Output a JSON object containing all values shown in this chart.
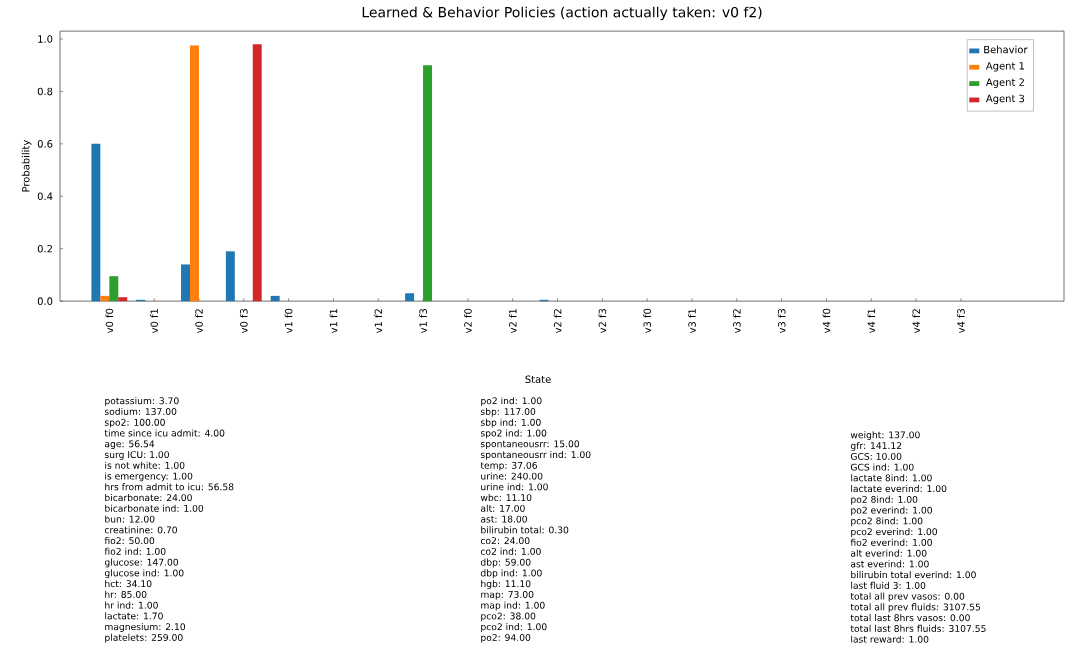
{
  "chart_data": {
    "type": "bar",
    "title": "Learned & Behavior Policies (action actually taken: v0 f2)",
    "ylabel": "Probability",
    "categories": [
      "v0 f0",
      "v0 f1",
      "v0 f2",
      "v0 f3",
      "v1 f0",
      "v1 f1",
      "v1 f2",
      "v1 f3",
      "v2 f0",
      "v2 f1",
      "v2 f2",
      "v2 f3",
      "v3 f0",
      "v3 f1",
      "v3 f2",
      "v3 f3",
      "v4 f0",
      "v4 f1",
      "v4 f2",
      "v4 f3"
    ],
    "series": [
      {
        "name": "Behavior",
        "color": "#1f77b4",
        "values": [
          0.6,
          0.005,
          0.14,
          0.19,
          0.02,
          0,
          0,
          0.03,
          0,
          0,
          0.005,
          0,
          0,
          0,
          0,
          0,
          0,
          0,
          0,
          0
        ]
      },
      {
        "name": "Agent 1",
        "color": "#ff7f0e",
        "values": [
          0.02,
          0,
          0.975,
          0,
          0,
          0,
          0,
          0,
          0,
          0,
          0,
          0,
          0,
          0,
          0,
          0,
          0,
          0,
          0,
          0
        ]
      },
      {
        "name": "Agent 2",
        "color": "#2ca02c",
        "values": [
          0.095,
          0,
          0,
          0,
          0,
          0,
          0,
          0.9,
          0,
          0,
          0,
          0,
          0,
          0,
          0,
          0,
          0,
          0,
          0,
          0
        ]
      },
      {
        "name": "Agent 3",
        "color": "#d62728",
        "values": [
          0.015,
          0,
          0,
          0.98,
          0,
          0,
          0,
          0,
          0,
          0,
          0,
          0,
          0,
          0,
          0,
          0,
          0,
          0,
          0,
          0
        ]
      }
    ],
    "ylim": [
      0,
      1.03
    ],
    "yticks": [
      {
        "value": 0,
        "label": "0.0"
      },
      {
        "value": 0.2,
        "label": "0.2"
      },
      {
        "value": 0.4,
        "label": "0.4"
      },
      {
        "value": 0.6,
        "label": "0.6"
      },
      {
        "value": 0.8,
        "label": "0.8"
      },
      {
        "value": 1.0,
        "label": "1.0"
      }
    ],
    "legend": "top right",
    "annotations": [
      "State",
      "potassium: 3.70",
      "sodium: 137.00",
      "spo2: 100.00",
      "time since icu admit: 4.00",
      "age: 56.54",
      "surg ICU: 1.00",
      "is not white: 1.00",
      "is emergency: 1.00",
      "hrs from admit to icu: 56.58",
      "bicarbonate: 24.00",
      "bicarbonate ind: 1.00",
      "bun: 12.00",
      "creatinine: 0.70",
      "fio2: 50.00",
      "fio2 ind: 1.00",
      "glucose: 147.00",
      "glucose ind: 1.00",
      "hct: 34.10",
      "hr: 85.00",
      "hr ind: 1.00",
      "lactate: 1.70",
      "magnesium: 2.10",
      "platelets: 259.00",
      "po2 ind: 1.00",
      "sbp: 117.00",
      "sbp ind: 1.00",
      "spo2 ind: 1.00",
      "spontaneousrr: 15.00",
      "spontaneousrr ind: 1.00",
      "temp: 37.06",
      "urine: 240.00",
      "urine ind: 1.00",
      "wbc: 11.10",
      "alt: 17.00",
      "ast: 18.00",
      "bilirubin total: 0.30",
      "co2: 24.00",
      "co2 ind: 1.00",
      "dbp: 59.00",
      "dbp ind: 1.00",
      "hgb: 11.10",
      "map: 73.00",
      "map ind: 1.00",
      "pco2: 38.00",
      "pco2 ind: 1.00",
      "po2: 94.00",
      "weight: 137.00",
      "gfr: 141.12",
      "GCS: 10.00",
      "GCS ind: 1.00",
      "lactate 8ind: 1.00",
      "lactate everind: 1.00",
      "po2 8ind: 1.00",
      "po2 everind: 1.00",
      "pco2 8ind: 1.00",
      "pco2 everind: 1.00",
      "fio2 everind: 1.00",
      "alt everind: 1.00",
      "ast everind: 1.00",
      "bilirubin total everind: 1.00",
      "last fluid 3: 1.00",
      "total all prev vasos: 0.00",
      "total all prev fluids: 3107.55",
      "total last 8hrs vasos: 0.00",
      "total last 8hrs fluids: 3107.55",
      "last reward: 1.00"
    ]
  }
}
